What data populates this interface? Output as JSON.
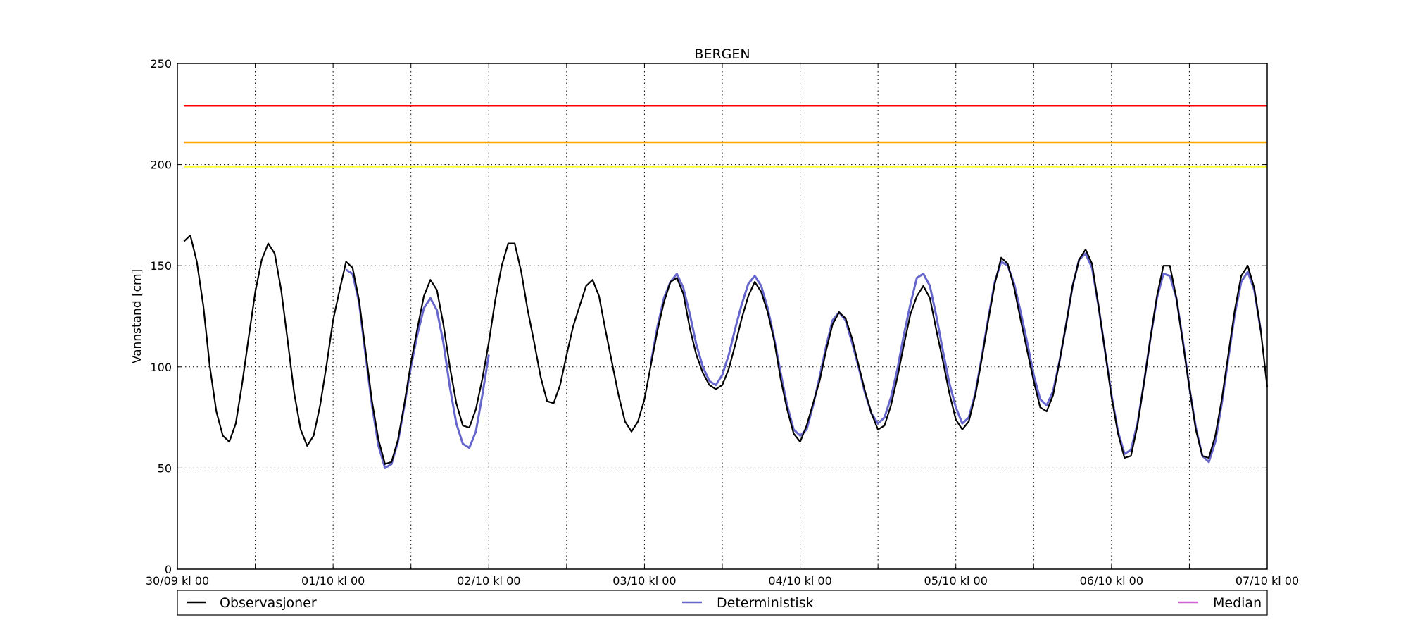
{
  "chart_data": {
    "type": "line",
    "title": "BERGEN",
    "ylabel": "Vannstand [cm]",
    "xlabel": "",
    "ylim": [
      0,
      250
    ],
    "xlim_hours": [
      0,
      168
    ],
    "yticks": [
      0,
      50,
      100,
      150,
      200,
      250
    ],
    "x_ticks": [
      {
        "hour": 0,
        "label": "30/09 kl 00"
      },
      {
        "hour": 24,
        "label": "01/10 kl 00"
      },
      {
        "hour": 48,
        "label": "02/10 kl 00"
      },
      {
        "hour": 72,
        "label": "03/10 kl 00"
      },
      {
        "hour": 96,
        "label": "04/10 kl 00"
      },
      {
        "hour": 120,
        "label": "05/10 kl 00"
      },
      {
        "hour": 144,
        "label": "06/10 kl 00"
      },
      {
        "hour": 168,
        "label": "07/10 kl 00"
      }
    ],
    "x_minor_gridlines_hours": [
      12,
      36,
      60,
      84,
      108,
      132,
      156
    ],
    "grid": true,
    "legend_position": "bottom",
    "thresholds": [
      {
        "value": 229,
        "color": "#ff0000"
      },
      {
        "value": 211,
        "color": "#ffa500"
      },
      {
        "value": 199,
        "color": "#ffff33"
      }
    ],
    "series": [
      {
        "name": "Observasjoner",
        "color": "#000000",
        "points": [
          [
            1,
            162
          ],
          [
            2,
            165
          ],
          [
            3,
            152
          ],
          [
            4,
            130
          ],
          [
            5,
            100
          ],
          [
            6,
            78
          ],
          [
            7,
            66
          ],
          [
            8,
            63
          ],
          [
            9,
            72
          ],
          [
            10,
            92
          ],
          [
            11,
            115
          ],
          [
            12,
            137
          ],
          [
            13,
            153
          ],
          [
            14,
            161
          ],
          [
            15,
            156
          ],
          [
            16,
            138
          ],
          [
            17,
            113
          ],
          [
            18,
            87
          ],
          [
            19,
            69
          ],
          [
            20,
            61
          ],
          [
            21,
            66
          ],
          [
            22,
            81
          ],
          [
            23,
            101
          ],
          [
            24,
            123
          ],
          [
            25,
            138
          ],
          [
            26,
            152
          ],
          [
            27,
            149
          ],
          [
            28,
            133
          ],
          [
            29,
            108
          ],
          [
            30,
            83
          ],
          [
            31,
            64
          ],
          [
            32,
            52
          ],
          [
            33,
            53
          ],
          [
            34,
            64
          ],
          [
            35,
            82
          ],
          [
            36,
            102
          ],
          [
            37,
            119
          ],
          [
            38,
            135
          ],
          [
            39,
            143
          ],
          [
            40,
            138
          ],
          [
            41,
            121
          ],
          [
            42,
            100
          ],
          [
            43,
            82
          ],
          [
            44,
            71
          ],
          [
            45,
            70
          ],
          [
            46,
            79
          ],
          [
            47,
            94
          ],
          [
            48,
            112
          ],
          [
            49,
            133
          ],
          [
            50,
            150
          ],
          [
            51,
            161
          ],
          [
            52,
            161
          ],
          [
            53,
            147
          ],
          [
            54,
            128
          ],
          [
            55,
            112
          ],
          [
            56,
            95
          ],
          [
            57,
            83
          ],
          [
            58,
            82
          ],
          [
            59,
            91
          ],
          [
            60,
            106
          ],
          [
            61,
            120
          ],
          [
            62,
            130
          ],
          [
            63,
            140
          ],
          [
            64,
            143
          ],
          [
            65,
            135
          ],
          [
            66,
            118
          ],
          [
            67,
            102
          ],
          [
            68,
            86
          ],
          [
            69,
            73
          ],
          [
            70,
            68
          ],
          [
            71,
            73
          ],
          [
            72,
            84
          ],
          [
            73,
            101
          ],
          [
            74,
            118
          ],
          [
            75,
            132
          ],
          [
            76,
            142
          ],
          [
            77,
            144
          ],
          [
            78,
            136
          ],
          [
            79,
            119
          ],
          [
            80,
            106
          ],
          [
            81,
            97
          ],
          [
            82,
            91
          ],
          [
            83,
            89
          ],
          [
            84,
            91
          ],
          [
            85,
            99
          ],
          [
            86,
            111
          ],
          [
            87,
            124
          ],
          [
            88,
            135
          ],
          [
            89,
            142
          ],
          [
            90,
            137
          ],
          [
            91,
            127
          ],
          [
            92,
            113
          ],
          [
            93,
            94
          ],
          [
            94,
            79
          ],
          [
            95,
            67
          ],
          [
            96,
            63
          ],
          [
            97,
            71
          ],
          [
            98,
            82
          ],
          [
            99,
            93
          ],
          [
            100,
            108
          ],
          [
            101,
            121
          ],
          [
            102,
            127
          ],
          [
            103,
            124
          ],
          [
            104,
            114
          ],
          [
            105,
            101
          ],
          [
            106,
            88
          ],
          [
            107,
            77
          ],
          [
            108,
            69
          ],
          [
            109,
            71
          ],
          [
            110,
            81
          ],
          [
            111,
            95
          ],
          [
            112,
            111
          ],
          [
            113,
            126
          ],
          [
            114,
            135
          ],
          [
            115,
            140
          ],
          [
            116,
            134
          ],
          [
            117,
            118
          ],
          [
            118,
            103
          ],
          [
            119,
            87
          ],
          [
            120,
            74
          ],
          [
            121,
            69
          ],
          [
            122,
            73
          ],
          [
            123,
            86
          ],
          [
            124,
            104
          ],
          [
            125,
            123
          ],
          [
            126,
            141
          ],
          [
            127,
            154
          ],
          [
            128,
            151
          ],
          [
            129,
            139
          ],
          [
            130,
            123
          ],
          [
            131,
            108
          ],
          [
            132,
            93
          ],
          [
            133,
            80
          ],
          [
            134,
            78
          ],
          [
            135,
            86
          ],
          [
            136,
            103
          ],
          [
            137,
            121
          ],
          [
            138,
            140
          ],
          [
            139,
            153
          ],
          [
            140,
            158
          ],
          [
            141,
            151
          ],
          [
            142,
            130
          ],
          [
            143,
            108
          ],
          [
            144,
            85
          ],
          [
            145,
            67
          ],
          [
            146,
            55
          ],
          [
            147,
            56
          ],
          [
            148,
            71
          ],
          [
            149,
            92
          ],
          [
            150,
            114
          ],
          [
            151,
            135
          ],
          [
            152,
            150
          ],
          [
            153,
            150
          ],
          [
            154,
            134
          ],
          [
            155,
            112
          ],
          [
            156,
            90
          ],
          [
            157,
            69
          ],
          [
            158,
            56
          ],
          [
            159,
            55
          ],
          [
            160,
            66
          ],
          [
            161,
            84
          ],
          [
            162,
            106
          ],
          [
            163,
            128
          ],
          [
            164,
            145
          ],
          [
            165,
            150
          ],
          [
            166,
            139
          ],
          [
            167,
            118
          ],
          [
            168,
            90
          ]
        ]
      },
      {
        "name": "Deterministisk",
        "color": "#6666cc",
        "segments": [
          [
            [
              26,
              148
            ],
            [
              27,
              146
            ],
            [
              28,
              132
            ],
            [
              29,
              106
            ],
            [
              30,
              81
            ],
            [
              31,
              61
            ],
            [
              32,
              50
            ],
            [
              33,
              52
            ],
            [
              34,
              63
            ],
            [
              35,
              81
            ],
            [
              36,
              100
            ],
            [
              37,
              116
            ],
            [
              38,
              129
            ],
            [
              39,
              134
            ],
            [
              40,
              128
            ],
            [
              41,
              112
            ],
            [
              42,
              90
            ],
            [
              43,
              72
            ],
            [
              44,
              62
            ],
            [
              45,
              60
            ],
            [
              46,
              68
            ],
            [
              47,
              86
            ],
            [
              48,
              106
            ]
          ],
          [
            [
              73,
              102
            ],
            [
              74,
              120
            ],
            [
              75,
              134
            ],
            [
              76,
              142
            ],
            [
              77,
              146
            ],
            [
              78,
              139
            ],
            [
              79,
              126
            ],
            [
              80,
              111
            ],
            [
              81,
              100
            ],
            [
              82,
              93
            ],
            [
              83,
              91
            ],
            [
              84,
              96
            ],
            [
              85,
              106
            ],
            [
              86,
              119
            ],
            [
              87,
              131
            ],
            [
              88,
              141
            ],
            [
              89,
              145
            ],
            [
              90,
              140
            ],
            [
              91,
              129
            ],
            [
              92,
              114
            ],
            [
              93,
              97
            ],
            [
              94,
              81
            ],
            [
              95,
              69
            ],
            [
              96,
              66
            ],
            [
              97,
              69
            ],
            [
              98,
              81
            ],
            [
              99,
              95
            ],
            [
              100,
              110
            ],
            [
              101,
              123
            ],
            [
              102,
              127
            ],
            [
              103,
              123
            ],
            [
              104,
              112
            ],
            [
              105,
              100
            ],
            [
              106,
              87
            ],
            [
              107,
              77
            ],
            [
              108,
              72
            ],
            [
              109,
              75
            ],
            [
              110,
              85
            ],
            [
              111,
              99
            ],
            [
              112,
              116
            ],
            [
              113,
              131
            ],
            [
              114,
              144
            ],
            [
              115,
              146
            ],
            [
              116,
              140
            ],
            [
              117,
              125
            ],
            [
              118,
              108
            ],
            [
              119,
              92
            ],
            [
              120,
              80
            ],
            [
              121,
              72
            ],
            [
              122,
              75
            ],
            [
              123,
              87
            ],
            [
              124,
              105
            ],
            [
              125,
              124
            ],
            [
              126,
              142
            ],
            [
              127,
              152
            ],
            [
              128,
              150
            ],
            [
              129,
              141
            ],
            [
              130,
              127
            ],
            [
              131,
              112
            ],
            [
              132,
              96
            ],
            [
              133,
              84
            ],
            [
              134,
              81
            ],
            [
              135,
              88
            ],
            [
              136,
              103
            ],
            [
              137,
              121
            ],
            [
              138,
              140
            ],
            [
              139,
              153
            ],
            [
              140,
              156
            ],
            [
              141,
              149
            ],
            [
              142,
              130
            ],
            [
              143,
              108
            ],
            [
              144,
              86
            ],
            [
              145,
              68
            ],
            [
              146,
              57
            ],
            [
              147,
              59
            ],
            [
              148,
              72
            ],
            [
              149,
              92
            ],
            [
              150,
              114
            ],
            [
              151,
              134
            ],
            [
              152,
              146
            ],
            [
              153,
              145
            ],
            [
              154,
              134
            ],
            [
              155,
              113
            ],
            [
              156,
              90
            ],
            [
              157,
              70
            ],
            [
              158,
              56
            ],
            [
              159,
              53
            ],
            [
              160,
              63
            ],
            [
              161,
              82
            ],
            [
              162,
              104
            ],
            [
              163,
              126
            ],
            [
              164,
              142
            ],
            [
              165,
              147
            ],
            [
              166,
              138
            ],
            [
              167,
              118
            ]
          ]
        ]
      },
      {
        "name": "Median",
        "color": "#cc66cc",
        "segments": []
      }
    ]
  }
}
